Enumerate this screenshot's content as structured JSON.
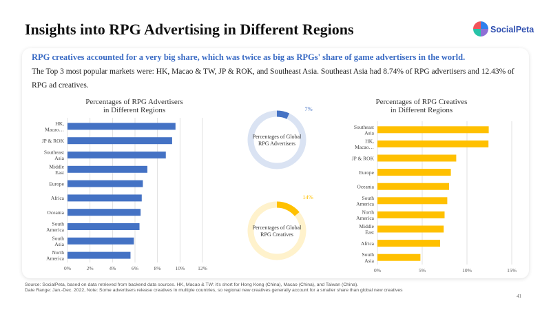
{
  "page": {
    "title": "Insights into RPG Advertising in Different Regions",
    "logo_text": "SocialPeta",
    "headline": "RPG creatives accounted for a very big share, which was twice as big as RPGs' share of game advertisers in the world.",
    "description": "The Top 3 most popular markets were: HK, Macao & TW, JP & ROK, and Southeast Asia. Southeast Asia had 8.74% of RPG advertisers and 12.43% of RPG ad creatives.",
    "footer_source": "Source: SocialPeta, based on data retrieved from backend data sources. HK, Macao & TW: it's short for Hong Kong (China), Macao (China), and Taiwan (China).",
    "footer_note": "Date Range: Jan.-Dec. 2022, Note: Some advertisers release creatives in multiple countries, so regional new creatives generally account for a smaller share than global new creatives",
    "page_number": "41"
  },
  "colors": {
    "title": "#111111",
    "headline": "#3a6bc4",
    "advertisers_bar": "#4472c4",
    "creatives_bar": "#ffc000",
    "advertisers_ring_track": "#dae3f3",
    "creatives_ring_track": "#fff2cc",
    "grid": "#d9d9d9"
  },
  "chart_data": [
    {
      "type": "bar",
      "orientation": "horizontal",
      "title": "Percentages of RPG Advertisers in Different Regions",
      "categories": [
        "HK, Macao…",
        "JP & ROK",
        "Southeast Asia",
        "Middle East",
        "Europe",
        "Africa",
        "Oceania",
        "South America",
        "South Asia",
        "North America"
      ],
      "values": [
        9.6,
        9.3,
        8.74,
        7.1,
        6.7,
        6.6,
        6.5,
        6.4,
        5.9,
        5.6
      ],
      "unit": "%",
      "xlim": [
        0,
        12
      ],
      "ticks": [
        "0%",
        "2%",
        "4%",
        "6%",
        "8%",
        "10%",
        "12%"
      ],
      "grid": true
    },
    {
      "type": "pie",
      "variant": "donut",
      "label": "Percentages of Global RPG Advertisers",
      "value": 7,
      "value_label": "7%"
    },
    {
      "type": "pie",
      "variant": "donut",
      "label": "Percentages of Global RPG Creatives",
      "value": 14,
      "value_label": "14%"
    },
    {
      "type": "bar",
      "orientation": "horizontal",
      "title": "Percentages of RPG Creatives in Different Regions",
      "categories": [
        "Southeast Asia",
        "HK, Macao…",
        "JP & ROK",
        "Europe",
        "Oceania",
        "South America",
        "North America",
        "Middle East",
        "Africa",
        "South Asia"
      ],
      "values": [
        12.43,
        12.4,
        8.8,
        8.2,
        8.0,
        7.8,
        7.5,
        7.4,
        7.0,
        4.8
      ],
      "unit": "%",
      "xlim": [
        0,
        15
      ],
      "ticks": [
        "0%",
        "5%",
        "10%",
        "15%"
      ],
      "grid": true
    }
  ]
}
